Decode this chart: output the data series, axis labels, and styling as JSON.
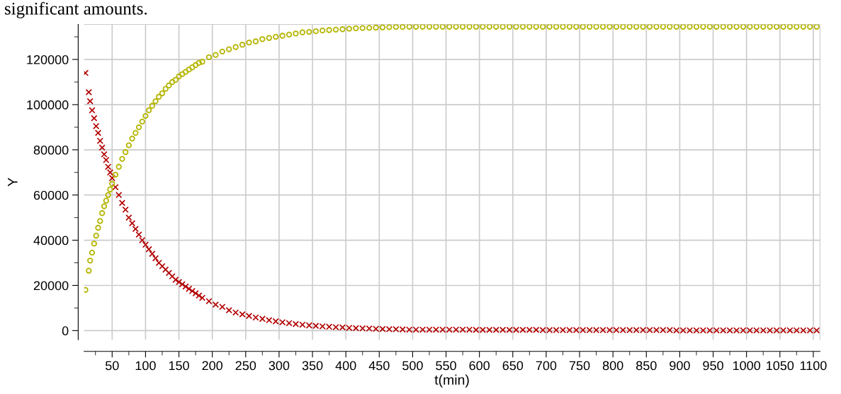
{
  "chart_data": {
    "type": "scatter",
    "annotations": [
      "significant amounts."
    ],
    "xlabel": "t(min)",
    "ylabel": "Y",
    "x": [
      10,
      15,
      17,
      20,
      23,
      26,
      29,
      32,
      35,
      38,
      41,
      44,
      47,
      50,
      55,
      60,
      65,
      70,
      75,
      80,
      85,
      90,
      95,
      100,
      105,
      110,
      115,
      120,
      125,
      130,
      135,
      140,
      145,
      150,
      155,
      160,
      165,
      170,
      175,
      180,
      185,
      195,
      205,
      215,
      225,
      235,
      245,
      255,
      265,
      275,
      285,
      295,
      305,
      315,
      325,
      335,
      345,
      355,
      365,
      375,
      385,
      395,
      405,
      415,
      425,
      435,
      445,
      455,
      465,
      475,
      485,
      495,
      505,
      515,
      525,
      535,
      545,
      555,
      565,
      575,
      585,
      595,
      605,
      615,
      625,
      635,
      645,
      655,
      665,
      675,
      685,
      695,
      705,
      715,
      725,
      735,
      745,
      755,
      765,
      775,
      785,
      795,
      805,
      815,
      825,
      835,
      845,
      855,
      865,
      875,
      885,
      895,
      905,
      915,
      925,
      935,
      945,
      955,
      965,
      975,
      985,
      995,
      1005,
      1015,
      1025,
      1035,
      1045,
      1055,
      1065,
      1075,
      1085,
      1095,
      1105
    ],
    "series": [
      {
        "color": "#b30000",
        "marker": "cross",
        "values": [
          114000,
          105500,
          101500,
          97500,
          94000,
          90500,
          87500,
          84000,
          81000,
          78000,
          75500,
          72500,
          70000,
          67500,
          63500,
          60000,
          56500,
          53500,
          50000,
          47500,
          45000,
          42500,
          40000,
          38000,
          36000,
          34000,
          32000,
          30000,
          28500,
          27000,
          25500,
          24000,
          22500,
          21500,
          20500,
          19500,
          18500,
          17500,
          16500,
          15500,
          14500,
          13000,
          11500,
          10500,
          9000,
          8000,
          7200,
          6500,
          5800,
          5200,
          4600,
          4100,
          3700,
          3300,
          2900,
          2600,
          2300,
          2100,
          1900,
          1700,
          1500,
          1400,
          1200,
          1100,
          1000,
          900,
          800,
          700,
          600,
          600,
          500,
          400,
          400,
          400,
          400,
          400,
          400,
          400,
          400,
          400,
          400,
          300,
          300,
          300,
          300,
          300,
          300,
          300,
          300,
          300,
          300,
          200,
          200,
          200,
          200,
          200,
          200,
          200,
          200,
          200,
          200,
          200,
          200,
          200,
          200,
          200,
          200,
          200,
          200,
          200,
          200,
          100,
          100,
          100,
          100,
          100,
          100,
          100,
          100,
          100,
          100,
          100,
          100,
          100,
          100,
          100,
          100,
          100,
          100,
          100,
          100,
          100,
          100
        ]
      },
      {
        "color": "#b5b500",
        "marker": "circle",
        "values": [
          18000,
          26500,
          31000,
          34500,
          38500,
          42000,
          45500,
          48500,
          52000,
          55000,
          57500,
          60000,
          62500,
          65000,
          69000,
          72500,
          76000,
          79000,
          82000,
          85000,
          87500,
          90000,
          92500,
          95000,
          97500,
          99500,
          101500,
          103500,
          105000,
          107000,
          108500,
          110000,
          111000,
          112500,
          113500,
          114500,
          115500,
          116500,
          117500,
          118500,
          119000,
          121000,
          122000,
          123500,
          124500,
          125500,
          126500,
          127500,
          128000,
          129000,
          129500,
          130000,
          130500,
          131000,
          131500,
          132000,
          132200,
          132500,
          132800,
          133000,
          133200,
          133400,
          133600,
          133800,
          133900,
          134000,
          134100,
          134200,
          134300,
          134400,
          134400,
          134500,
          134500,
          134500,
          134500,
          134500,
          134500,
          134500,
          134500,
          134500,
          134500,
          134500,
          134500,
          134500,
          134500,
          134500,
          134500,
          134500,
          134500,
          134500,
          134500,
          134500,
          134500,
          134500,
          134500,
          134500,
          134500,
          134500,
          134500,
          134500,
          134500,
          134500,
          134500,
          134500,
          134500,
          134500,
          134500,
          134500,
          134500,
          134500,
          134500,
          134500,
          134500,
          134500,
          134500,
          134500,
          134500,
          134500,
          134500,
          134500,
          134500,
          134500,
          134500,
          134500,
          134500,
          134500,
          134500,
          134500,
          134500,
          134500,
          134500,
          134500,
          134500
        ]
      }
    ],
    "xlim": [
      8,
      1110
    ],
    "xticks": [
      50,
      100,
      150,
      200,
      250,
      300,
      350,
      400,
      450,
      500,
      550,
      600,
      650,
      700,
      750,
      800,
      850,
      900,
      950,
      1000,
      1050,
      1100
    ],
    "ylim": [
      -4000,
      135500
    ],
    "yticks": [
      0,
      20000,
      40000,
      60000,
      80000,
      100000,
      120000
    ],
    "grid": true
  }
}
